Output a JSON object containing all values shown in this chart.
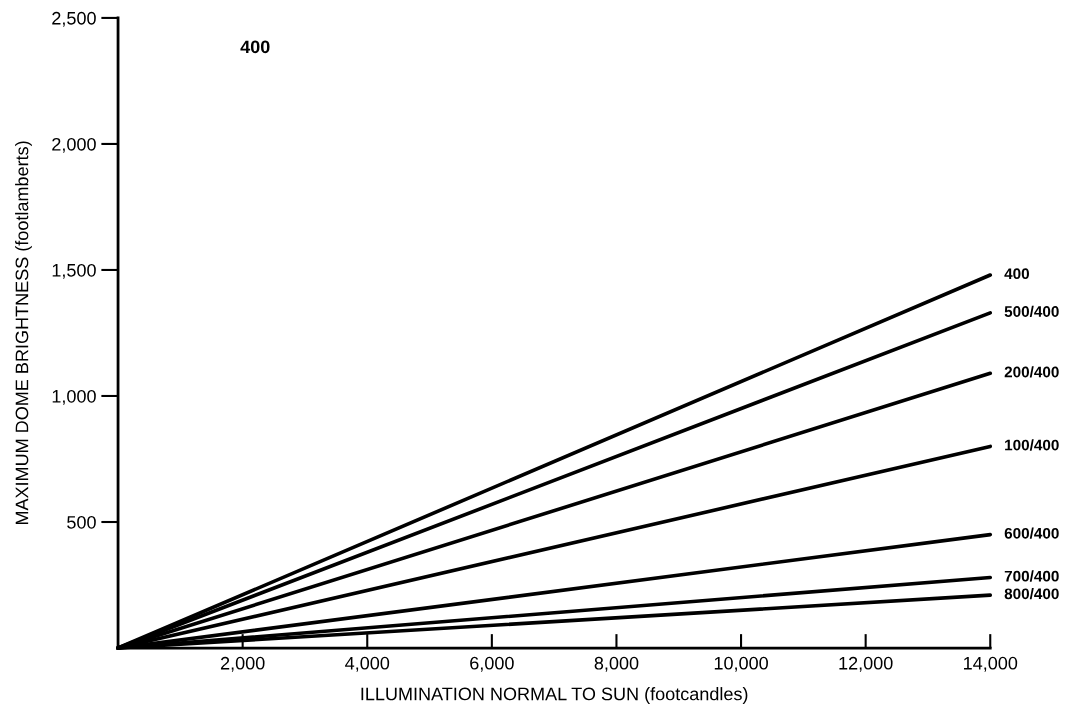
{
  "chart_data": {
    "type": "line",
    "xlabel": "ILLUMINATION NORMAL TO SUN (footcandles)",
    "ylabel": "MAXIMUM DOME BRIGHTNESS (footlamberts)",
    "x": [
      0,
      14000
    ],
    "series": [
      {
        "name": "400",
        "color": "#000000",
        "values": [
          0,
          1480
        ]
      },
      {
        "name": "500/400",
        "color": "#000000",
        "values": [
          0,
          1330
        ]
      },
      {
        "name": "200/400",
        "color": "#000000",
        "values": [
          0,
          1090
        ]
      },
      {
        "name": "100/400",
        "color": "#000000",
        "values": [
          0,
          800
        ]
      },
      {
        "name": "600/400",
        "color": "#000000",
        "values": [
          0,
          450
        ]
      },
      {
        "name": "700/400",
        "color": "#000000",
        "values": [
          0,
          280
        ]
      },
      {
        "name": "800/400",
        "color": "#000000",
        "values": [
          0,
          210
        ]
      }
    ],
    "xlim": [
      0,
      14000
    ],
    "xticks": [
      {
        "value": 2000,
        "label": "2,000"
      },
      {
        "value": 4000,
        "label": "4,000"
      },
      {
        "value": 6000,
        "label": "6,000"
      },
      {
        "value": 8000,
        "label": "8,000"
      },
      {
        "value": 10000,
        "label": "10,000"
      },
      {
        "value": 12000,
        "label": "12,000"
      },
      {
        "value": 14000,
        "label": "14,000"
      }
    ],
    "ylim": [
      0,
      2500
    ],
    "yticks": [
      500,
      {
        "value": 1000,
        "label": "1,000"
      },
      {
        "value": 1500,
        "label": "1,500"
      },
      {
        "value": 2000,
        "label": "2,000"
      },
      {
        "value": 2500,
        "label": "2,500"
      }
    ],
    "annotations": [
      "400"
    ],
    "grid": false,
    "legend": false,
    "marker": "none",
    "line_style": "solid"
  }
}
